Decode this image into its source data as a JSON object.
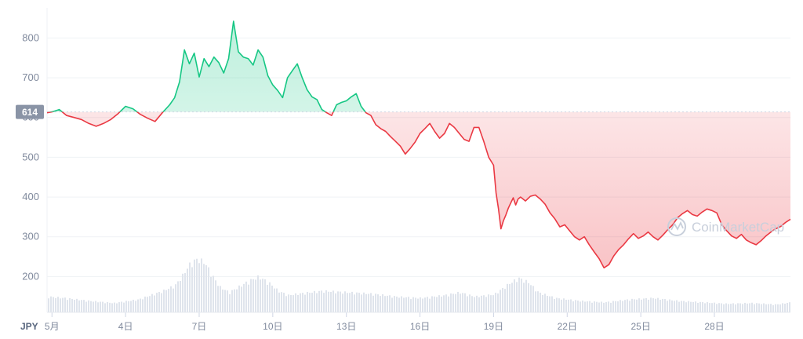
{
  "chart_data": {
    "type": "line",
    "currency": "JPY",
    "reference_price": 614,
    "reference_label": "614",
    "ylim": [
      110,
      860
    ],
    "y_ticks": [
      {
        "value": 800,
        "label": "800"
      },
      {
        "value": 700,
        "label": "700"
      },
      {
        "value": 600,
        "label": "600"
      },
      {
        "value": 500,
        "label": "500"
      },
      {
        "value": 400,
        "label": "400"
      },
      {
        "value": 300,
        "label": "300"
      },
      {
        "value": 200,
        "label": "200"
      }
    ],
    "x_range": [
      0.8,
      31.1
    ],
    "x_ticks": [
      {
        "day": 1,
        "label": "5月"
      },
      {
        "day": 4,
        "label": "4日"
      },
      {
        "day": 7,
        "label": "7日"
      },
      {
        "day": 10,
        "label": "10日"
      },
      {
        "day": 13,
        "label": "13日"
      },
      {
        "day": 16,
        "label": "16日"
      },
      {
        "day": 19,
        "label": "19日"
      },
      {
        "day": 22,
        "label": "22日"
      },
      {
        "day": 25,
        "label": "25日"
      },
      {
        "day": 28,
        "label": "28日"
      }
    ],
    "price_series": {
      "name": "",
      "days": [
        0.8,
        1.0,
        1.3,
        1.6,
        1.9,
        2.2,
        2.5,
        2.8,
        3.1,
        3.4,
        3.7,
        4.0,
        4.3,
        4.6,
        4.9,
        5.2,
        5.5,
        5.8,
        6.0,
        6.2,
        6.4,
        6.6,
        6.8,
        7.0,
        7.2,
        7.4,
        7.6,
        7.8,
        8.0,
        8.2,
        8.4,
        8.6,
        8.8,
        9.0,
        9.2,
        9.4,
        9.6,
        9.8,
        10.0,
        10.2,
        10.4,
        10.6,
        10.8,
        11.0,
        11.2,
        11.4,
        11.6,
        11.8,
        12.0,
        12.2,
        12.4,
        12.6,
        12.8,
        13.0,
        13.2,
        13.4,
        13.6,
        13.8,
        14.0,
        14.2,
        14.4,
        14.6,
        14.8,
        15.0,
        15.2,
        15.4,
        15.6,
        15.8,
        16.0,
        16.2,
        16.4,
        16.6,
        16.8,
        17.0,
        17.2,
        17.4,
        17.6,
        17.8,
        18.0,
        18.2,
        18.4,
        18.6,
        18.8,
        19.0,
        19.1,
        19.2,
        19.3,
        19.4,
        19.5,
        19.6,
        19.7,
        19.8,
        19.9,
        20.0,
        20.1,
        20.3,
        20.5,
        20.7,
        20.9,
        21.1,
        21.3,
        21.5,
        21.7,
        21.9,
        22.1,
        22.3,
        22.5,
        22.7,
        22.9,
        23.1,
        23.3,
        23.5,
        23.7,
        23.9,
        24.1,
        24.3,
        24.5,
        24.7,
        24.9,
        25.1,
        25.3,
        25.5,
        25.7,
        25.9,
        26.1,
        26.3,
        26.5,
        26.7,
        26.9,
        27.1,
        27.3,
        27.5,
        27.7,
        27.9,
        28.1,
        28.3,
        28.5,
        28.7,
        28.9,
        29.1,
        29.3,
        29.5,
        29.7,
        29.9,
        30.1,
        30.3,
        30.5,
        30.7,
        30.9,
        31.1
      ],
      "prices": [
        612,
        614,
        620,
        605,
        600,
        595,
        585,
        578,
        585,
        595,
        610,
        628,
        622,
        608,
        598,
        590,
        612,
        632,
        650,
        690,
        770,
        735,
        762,
        702,
        748,
        728,
        752,
        738,
        712,
        748,
        842,
        765,
        752,
        748,
        732,
        770,
        752,
        705,
        682,
        668,
        650,
        700,
        718,
        735,
        700,
        670,
        652,
        645,
        620,
        612,
        605,
        632,
        638,
        642,
        652,
        660,
        628,
        612,
        605,
        582,
        572,
        565,
        552,
        540,
        528,
        508,
        522,
        538,
        560,
        572,
        585,
        565,
        548,
        560,
        585,
        575,
        560,
        545,
        540,
        575,
        575,
        540,
        500,
        480,
        410,
        370,
        320,
        340,
        355,
        372,
        385,
        398,
        380,
        395,
        400,
        390,
        402,
        405,
        395,
        382,
        360,
        345,
        325,
        330,
        315,
        300,
        292,
        300,
        280,
        262,
        245,
        222,
        230,
        252,
        268,
        280,
        295,
        308,
        296,
        302,
        312,
        300,
        292,
        304,
        318,
        330,
        348,
        358,
        366,
        356,
        352,
        362,
        370,
        366,
        360,
        330,
        315,
        302,
        296,
        306,
        292,
        285,
        280,
        290,
        302,
        312,
        320,
        326,
        336,
        344
      ]
    },
    "volume_series": {
      "days": [
        0.8,
        1.5,
        2.5,
        3.5,
        4.5,
        5.0,
        5.5,
        6.0,
        6.3,
        6.6,
        6.9,
        7.2,
        7.5,
        7.8,
        8.2,
        8.6,
        9.0,
        9.4,
        9.8,
        10.2,
        10.6,
        11.0,
        12.0,
        13.0,
        14.0,
        15.0,
        16.0,
        17.0,
        17.6,
        18.2,
        19.0,
        19.6,
        20.0,
        20.4,
        20.8,
        21.5,
        22.5,
        23.5,
        24.5,
        25.5,
        26.5,
        27.5,
        28.5,
        29.5,
        30.5,
        31.1
      ],
      "volumes": [
        22,
        20,
        16,
        13,
        18,
        24,
        30,
        38,
        52,
        68,
        75,
        70,
        52,
        36,
        28,
        36,
        44,
        50,
        42,
        30,
        24,
        26,
        30,
        28,
        26,
        22,
        20,
        24,
        28,
        22,
        25,
        40,
        48,
        42,
        28,
        20,
        16,
        14,
        18,
        20,
        16,
        14,
        12,
        13,
        11,
        14
      ]
    },
    "colors": {
      "up": "#16c784",
      "down": "#ea3943",
      "volume": "#dfe4ec",
      "grid": "#eff2f5",
      "axis_text": "#808a9d",
      "reference_badge": "#8a94a6"
    },
    "grid": true,
    "watermark": "CoinMarketCap"
  }
}
